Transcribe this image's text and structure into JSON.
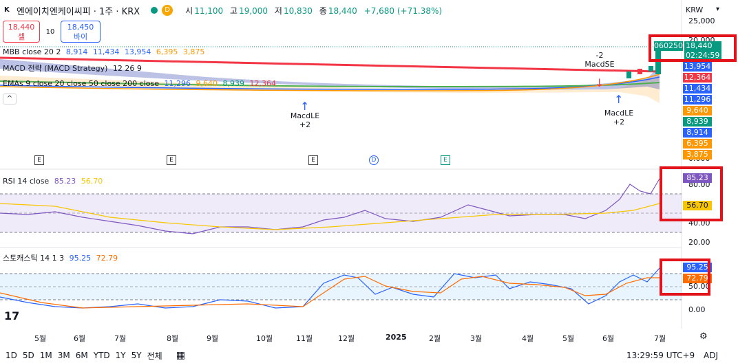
{
  "symbol": {
    "title": "엔에이치엔케이씨피 · 1주 · KRX",
    "logo": "K",
    "status_d": "D"
  },
  "ohlc": {
    "open_k": "시",
    "open_v": "11,100",
    "high_k": "고",
    "high_v": "19,000",
    "low_k": "저",
    "low_v": "10,830",
    "close_k": "종",
    "close_v": "18,440",
    "change": "+7,680 (+71.38%)"
  },
  "trade": {
    "sell_price": "18,440",
    "sell_label": "셀",
    "spread": "10",
    "buy_price": "18,450",
    "buy_label": "바이"
  },
  "legends": {
    "mbb_name": "MBB close 20 2",
    "mbb_v1": "8,914",
    "mbb_v2": "11,434",
    "mbb_v3": "13,954",
    "mbb_v4": "6,395",
    "mbb_v5": "3,875",
    "macd_name": "MACD 전략 (MACD Strategy)",
    "macd_params": "12 26 9",
    "ema_name": "EMAs 9 close 20 close 50 close 200 close",
    "ema_v1": "11,296",
    "ema_v2": "9,640",
    "ema_v3": "8,939",
    "ema_v4": "12,364",
    "rsi_name": "RSI 14 close",
    "rsi_v1": "85.23",
    "rsi_v2": "56.70",
    "stoch_name": "스토캐스틱 14 1 3",
    "stoch_v1": "95.25",
    "stoch_v2": "72.79"
  },
  "currency": "KRW",
  "currency_arrow": "▾",
  "price_labels": {
    "ticker": "060250",
    "last": "18,440",
    "countdown": "02:24:59",
    "p1": "13,954",
    "p2": "12,364",
    "p3": "11,434",
    "p4": "11,296",
    "p5": "9,640",
    "p6": "8,939",
    "p7": "8,914",
    "p8": "6,395",
    "p9": "3,875",
    "axis_top": "25,000",
    "axis_mid": "20,000",
    "axis_bot": "0.000"
  },
  "rsi_axis": {
    "a80": "80.00",
    "a40": "40.00",
    "a20": "20.00",
    "label1": "85.23",
    "label2": "56.70"
  },
  "stoch_axis": {
    "a50": "50.00",
    "a0": "0.00",
    "label1": "95.25",
    "label2": "72.79"
  },
  "signals": {
    "macdle1_name": "MacdLE",
    "macdle1_qty": "+2",
    "macdse_qty": "-2",
    "macdse_name": "MacdSE",
    "macdle2_name": "MacdLE",
    "macdle2_qty": "+2"
  },
  "markers": [
    "E",
    "E",
    "E",
    "D",
    "E"
  ],
  "time_axis": [
    "5월",
    "6월",
    "7월",
    "8월",
    "9월",
    "10월",
    "11월",
    "12월",
    "2025",
    "2월",
    "3월",
    "4월",
    "5월",
    "6월",
    "7월"
  ],
  "bottom": {
    "tf": [
      "1D",
      "5D",
      "1M",
      "3M",
      "6M",
      "YTD",
      "1Y",
      "5Y",
      "전체"
    ],
    "clock": "13:29:59 UTC+9",
    "adj": "ADJ"
  },
  "colors": {
    "up": "#089981",
    "down": "#f23645",
    "macd_blue": "#2962ff",
    "ema_orange": "#ff9800",
    "rsi_purple": "#7e57c2",
    "rsi_ma": "#f7c600",
    "stoch_blue": "#2962ff",
    "stoch_orange": "#ff6d00",
    "highlight_red": "#e3131b"
  }
}
